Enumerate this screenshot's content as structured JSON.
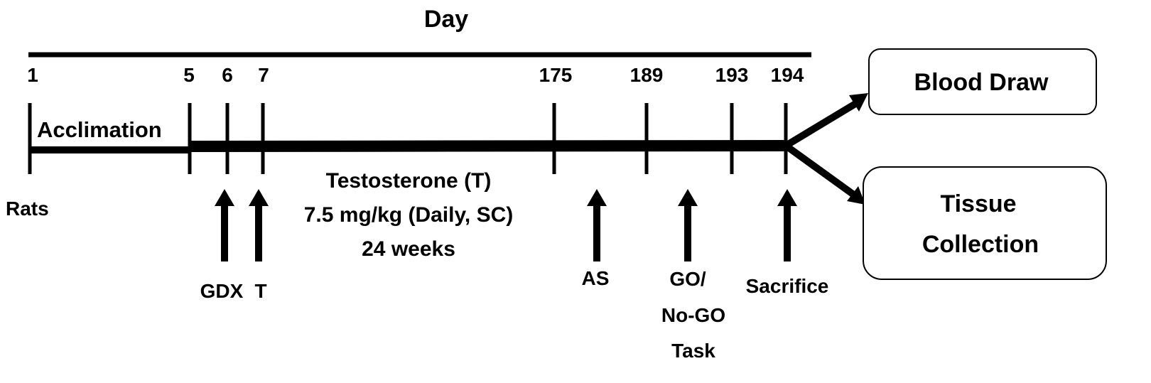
{
  "axis_title": "Day",
  "timeline": {
    "ticks": [
      {
        "day": "1"
      },
      {
        "day": "5"
      },
      {
        "day": "6"
      },
      {
        "day": "7"
      },
      {
        "day": "175"
      },
      {
        "day": "189"
      },
      {
        "day": "193"
      },
      {
        "day": "194"
      }
    ]
  },
  "labels": {
    "rats": "Rats",
    "acclimation": "Acclimation",
    "treatment_line1": "Testosterone (T)",
    "treatment_line2": "7.5 mg/kg (Daily, SC)",
    "treatment_line3": "24 weeks"
  },
  "events": {
    "gdx": "GDX",
    "t": "T",
    "as": "AS",
    "gonogo_line1": "GO/",
    "gonogo_line2": "No-GO",
    "gonogo_line3": "Task",
    "sacrifice": "Sacrifice"
  },
  "outcomes": {
    "blood_draw": "Blood Draw",
    "tissue_line1": "Tissue",
    "tissue_line2": "Collection"
  }
}
